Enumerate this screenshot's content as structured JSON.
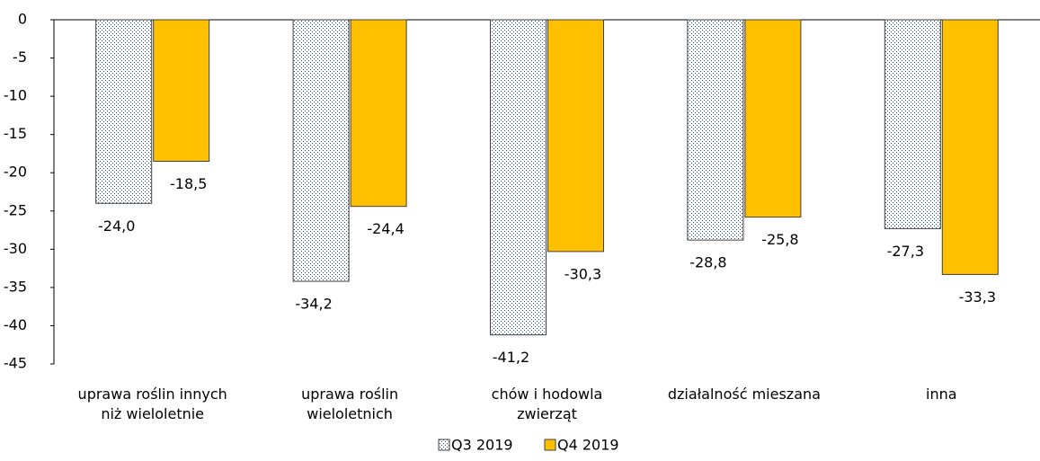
{
  "chart_data": {
    "type": "bar",
    "categories": [
      "uprawa roślin innych\nniż wieloletnie",
      "uprawa roślin\nwieloletnich",
      "chów i hodowla\nzwierząt",
      "działalność mieszana",
      "inna"
    ],
    "series": [
      {
        "name": "Q3 2019",
        "color": "#1f4e79",
        "pattern": "dots",
        "values": [
          -24.0,
          -34.2,
          -41.2,
          -28.8,
          -27.3
        ],
        "value_labels": [
          "-24,0",
          "-34,2",
          "-41,2",
          "-28,8",
          "-27,3"
        ]
      },
      {
        "name": "Q4 2019",
        "color": "#ffc000",
        "values": [
          -18.5,
          -24.4,
          -30.3,
          -25.8,
          -33.3
        ],
        "value_labels": [
          "-18,5",
          "-24,4",
          "-30,3",
          "-25,8",
          "-33,3"
        ]
      }
    ],
    "ylim": [
      -45,
      0
    ],
    "yticks": [
      0,
      -5,
      -10,
      -15,
      -20,
      -25,
      -30,
      -35,
      -40,
      -45
    ],
    "grid": false,
    "legend": "bottom"
  }
}
